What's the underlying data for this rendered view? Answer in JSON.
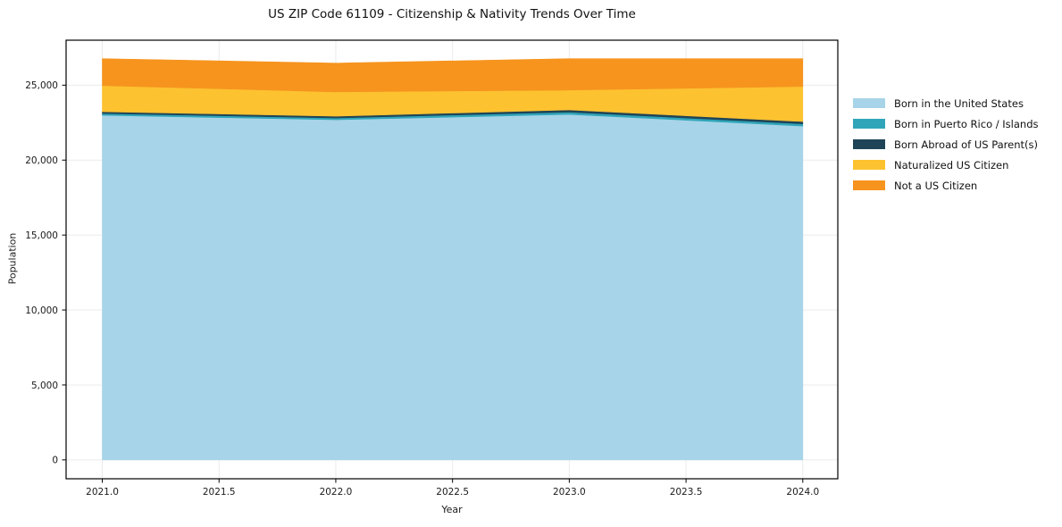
{
  "chart_data": {
    "type": "area",
    "stacked": true,
    "title": "US ZIP Code 61109 - Citizenship & Nativity Trends Over Time",
    "xlabel": "Year",
    "ylabel": "Population",
    "x": [
      2021,
      2022,
      2023,
      2024
    ],
    "series": [
      {
        "name": "Born in the United States",
        "color": "#A7D4E8",
        "values": [
          22990,
          22690,
          23050,
          22270
        ]
      },
      {
        "name": "Born in Puerto Rico / Islands",
        "color": "#30A5B9",
        "values": [
          120,
          120,
          150,
          150
        ]
      },
      {
        "name": "Born Abroad of US Parent(s)",
        "color": "#1F4457",
        "values": [
          120,
          120,
          150,
          150
        ]
      },
      {
        "name": "Naturalized US Citizen",
        "color": "#FDC230",
        "values": [
          1740,
          1620,
          1320,
          2340
        ]
      },
      {
        "name": "Not a US Citizen",
        "color": "#F6941E",
        "values": [
          1800,
          1920,
          2100,
          1860
        ]
      }
    ],
    "totals": [
      26770,
      26470,
      26770,
      26770
    ],
    "x_ticks": [
      2021.0,
      2021.5,
      2022.0,
      2022.5,
      2023.0,
      2023.5,
      2024.0
    ],
    "y_ticks": [
      0,
      5000,
      10000,
      15000,
      20000,
      25000
    ],
    "xlim": [
      2020.845,
      2024.15
    ],
    "ylim": [
      -1260,
      28000
    ],
    "grid": true,
    "grid_color": "#ebebeb",
    "spine_color": "#000000",
    "legend_position": "right-outside"
  }
}
